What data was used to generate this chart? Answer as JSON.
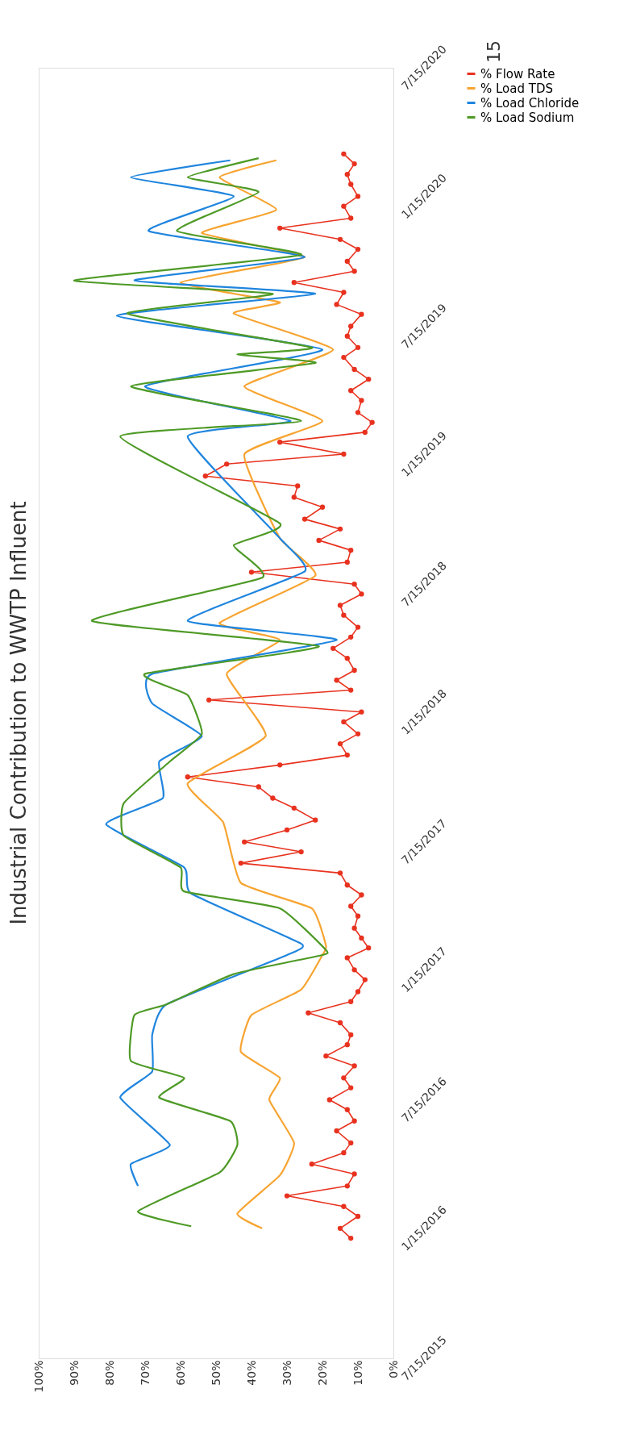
{
  "chart_data": {
    "type": "line",
    "title": "Industrial Contribution to WWTP Influent",
    "orientation": "horizontal",
    "annotations": [
      "15"
    ],
    "xlim": [
      100,
      0
    ],
    "xticks": [
      {
        "value": 100,
        "label": "100%"
      },
      {
        "value": 90,
        "label": "90%"
      },
      {
        "value": 80,
        "label": "80%"
      },
      {
        "value": 70,
        "label": "70%"
      },
      {
        "value": 60,
        "label": "60%"
      },
      {
        "value": 50,
        "label": "50%"
      },
      {
        "value": 40,
        "label": "40%"
      },
      {
        "value": 30,
        "label": "30%"
      },
      {
        "value": 20,
        "label": "20%"
      },
      {
        "value": 10,
        "label": "10%"
      },
      {
        "value": 0,
        "label": "0%"
      }
    ],
    "ylim": [
      "2015-07-15",
      "2020-07-15"
    ],
    "yticks": [
      {
        "value": "2015-07-15",
        "label": "7/15/2015"
      },
      {
        "value": "2016-01-15",
        "label": "1/15/2016"
      },
      {
        "value": "2016-07-15",
        "label": "7/15/2016"
      },
      {
        "value": "2017-01-15",
        "label": "1/15/2017"
      },
      {
        "value": "2017-07-15",
        "label": "7/15/2017"
      },
      {
        "value": "2018-01-15",
        "label": "1/15/2018"
      },
      {
        "value": "2018-07-15",
        "label": "7/15/2018"
      },
      {
        "value": "2019-01-15",
        "label": "1/15/2019"
      },
      {
        "value": "2019-07-15",
        "label": "7/15/2019"
      },
      {
        "value": "2020-01-15",
        "label": "1/15/2020"
      },
      {
        "value": "2020-07-15",
        "label": "7/15/2020"
      }
    ],
    "grid": false,
    "legend": "right",
    "line_style": "solid",
    "series": [
      {
        "name": "% Flow Rate",
        "color": "#e8321f",
        "marker": "circle",
        "x": [
          "2016-01-01",
          "2016-01-15",
          "2016-02-01",
          "2016-02-15",
          "2016-03-01",
          "2016-03-15",
          "2016-04-01",
          "2016-04-15",
          "2016-05-01",
          "2016-05-15",
          "2016-06-01",
          "2016-06-15",
          "2016-07-01",
          "2016-07-15",
          "2016-08-01",
          "2016-08-15",
          "2016-09-01",
          "2016-09-15",
          "2016-10-01",
          "2016-10-15",
          "2016-11-01",
          "2016-11-15",
          "2016-12-01",
          "2016-12-15",
          "2017-01-01",
          "2017-01-15",
          "2017-02-01",
          "2017-02-15",
          "2017-03-01",
          "2017-03-15",
          "2017-04-01",
          "2017-04-15",
          "2017-05-01",
          "2017-05-15",
          "2017-06-01",
          "2017-06-15",
          "2017-07-01",
          "2017-07-15",
          "2017-08-01",
          "2017-08-15",
          "2017-09-01",
          "2017-09-15",
          "2017-10-01",
          "2017-10-15",
          "2017-11-01",
          "2017-11-15",
          "2017-12-01",
          "2017-12-15",
          "2018-01-01",
          "2018-01-15",
          "2018-02-01",
          "2018-02-15",
          "2018-03-01",
          "2018-03-15",
          "2018-04-01",
          "2018-04-15",
          "2018-05-01",
          "2018-05-15",
          "2018-06-01",
          "2018-06-15",
          "2018-07-01",
          "2018-07-15",
          "2018-08-01",
          "2018-08-15",
          "2018-09-01",
          "2018-09-15",
          "2018-10-01",
          "2018-10-15",
          "2018-11-01",
          "2018-11-15",
          "2018-12-01",
          "2018-12-15",
          "2019-01-01",
          "2019-01-15",
          "2019-02-01",
          "2019-02-15",
          "2019-03-01",
          "2019-03-15",
          "2019-04-01",
          "2019-04-15",
          "2019-05-01",
          "2019-05-15",
          "2019-06-01",
          "2019-06-15",
          "2019-07-01",
          "2019-07-15",
          "2019-08-01",
          "2019-08-15",
          "2019-09-01",
          "2019-09-15",
          "2019-10-01",
          "2019-10-15",
          "2019-11-01",
          "2019-11-15",
          "2019-12-01",
          "2019-12-15",
          "2020-01-01",
          "2020-01-15",
          "2020-02-01",
          "2020-02-15",
          "2020-03-01",
          "2020-03-15"
        ],
        "values": [
          12,
          15,
          10,
          14,
          30,
          13,
          11,
          23,
          14,
          12,
          16,
          11,
          13,
          18,
          12,
          14,
          11,
          19,
          13,
          12,
          15,
          24,
          12,
          10,
          8,
          11,
          13,
          7,
          9,
          11,
          10,
          12,
          9,
          13,
          15,
          43,
          26,
          42,
          30,
          22,
          28,
          34,
          38,
          58,
          32,
          13,
          15,
          10,
          14,
          9,
          52,
          12,
          16,
          11,
          13,
          17,
          12,
          10,
          14,
          15,
          9,
          11,
          40,
          13,
          12,
          21,
          15,
          25,
          20,
          28,
          27,
          53,
          47,
          14,
          32,
          8,
          6,
          10,
          9,
          12,
          7,
          11,
          14,
          10,
          13,
          12,
          9,
          16,
          14,
          28,
          11,
          13,
          10,
          15,
          32,
          12,
          14,
          10,
          12,
          13,
          11,
          14
        ]
      },
      {
        "name": "% Load TDS",
        "color": "#f7a431",
        "marker": "none",
        "x": [
          "2016-01-15",
          "2016-02-05",
          "2016-03-30",
          "2016-05-15",
          "2016-07-15",
          "2016-08-15",
          "2016-09-21",
          "2016-11-12",
          "2016-12-18",
          "2017-02-05",
          "2017-02-18",
          "2017-04-12",
          "2017-05-18",
          "2017-08-12",
          "2017-10-06",
          "2017-12-12",
          "2018-03-10",
          "2018-04-27",
          "2018-05-21",
          "2018-07-27",
          "2018-09-18",
          "2019-01-15",
          "2019-03-03",
          "2019-04-21",
          "2019-06-12",
          "2019-08-02",
          "2019-08-18",
          "2019-09-15",
          "2019-10-21",
          "2019-11-24",
          "2019-12-27",
          "2020-02-11",
          "2020-03-06"
        ],
        "values": [
          37,
          44,
          32,
          28,
          35,
          32,
          43,
          40,
          26,
          20,
          19,
          23,
          43,
          48,
          58,
          36,
          47,
          32,
          49,
          22,
          32,
          42,
          20,
          42,
          17,
          45,
          32,
          60,
          25,
          54,
          33,
          49,
          33
        ]
      },
      {
        "name": "% Load Chloride",
        "color": "#1f85de",
        "marker": "none",
        "x": [
          "2016-03-15",
          "2016-04-15",
          "2016-05-12",
          "2016-07-18",
          "2016-08-24",
          "2016-10-15",
          "2016-11-27",
          "2017-02-05",
          "2017-02-21",
          "2017-05-03",
          "2017-06-09",
          "2017-08-09",
          "2017-09-15",
          "2017-11-06",
          "2017-12-12",
          "2018-01-27",
          "2018-03-10",
          "2018-04-27",
          "2018-05-24",
          "2018-08-02",
          "2018-09-18",
          "2019-02-09",
          "2019-03-03",
          "2019-04-21",
          "2019-06-12",
          "2019-07-30",
          "2019-08-30",
          "2019-09-18",
          "2019-10-21",
          "2019-11-27",
          "2020-01-15",
          "2020-02-11",
          "2020-03-06"
        ],
        "values": [
          72,
          74,
          63,
          77,
          68,
          68,
          64,
          30,
          26,
          57,
          59,
          81,
          65,
          66,
          54,
          68,
          68,
          16,
          58,
          25,
          32,
          58,
          29,
          70,
          20,
          78,
          22,
          73,
          25,
          69,
          45,
          74,
          46
        ]
      },
      {
        "name": "% Load Sodium",
        "color": "#4e9a26",
        "marker": "none",
        "x": [
          "2016-01-18",
          "2016-02-08",
          "2016-04-03",
          "2016-05-12",
          "2016-06-15",
          "2016-07-18",
          "2016-08-15",
          "2016-09-08",
          "2016-11-12",
          "2016-11-27",
          "2017-01-09",
          "2017-02-05",
          "2017-02-12",
          "2017-04-12",
          "2017-05-06",
          "2017-06-09",
          "2017-07-24",
          "2017-09-08",
          "2017-11-06",
          "2017-12-15",
          "2018-02-08",
          "2018-03-10",
          "2018-04-18",
          "2018-05-24",
          "2018-07-24",
          "2018-09-08",
          "2018-10-09",
          "2019-02-09",
          "2019-03-03",
          "2019-04-21",
          "2019-05-24",
          "2019-06-05",
          "2019-06-15",
          "2019-08-02",
          "2019-08-30",
          "2019-09-18",
          "2019-10-24",
          "2019-11-27",
          "2020-01-21",
          "2020-02-11",
          "2020-03-09"
        ],
        "values": [
          57,
          72,
          49,
          44,
          46,
          66,
          59,
          74,
          73,
          64,
          45,
          20,
          19,
          32,
          59,
          60,
          76,
          76,
          63,
          54,
          58,
          70,
          21,
          85,
          37,
          45,
          32,
          77,
          26,
          74,
          22,
          44,
          23,
          75,
          34,
          90,
          26,
          61,
          38,
          58,
          38
        ]
      }
    ]
  }
}
